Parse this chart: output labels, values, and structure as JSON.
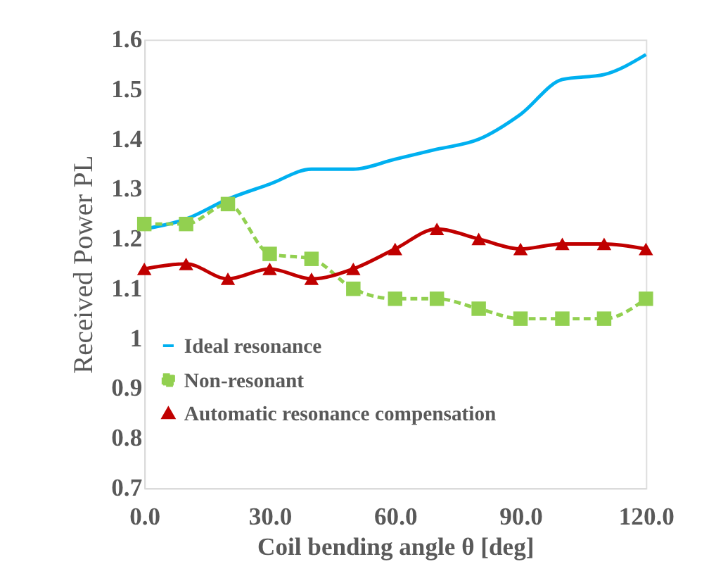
{
  "chart_data": {
    "type": "line",
    "xlabel": "Coil bending angle θ [deg]",
    "ylabel": "Received Power PL",
    "x": [
      0,
      10,
      20,
      30,
      40,
      50,
      60,
      70,
      80,
      90,
      100,
      110,
      120
    ],
    "series": [
      {
        "name": "Ideal resonance",
        "color": "#00b0f0",
        "marker": "none",
        "line_style": "solid",
        "values": [
          1.22,
          1.24,
          1.28,
          1.31,
          1.34,
          1.34,
          1.36,
          1.38,
          1.4,
          1.45,
          1.52,
          1.53,
          1.57
        ]
      },
      {
        "name": "Non-resonant",
        "color": "#92d050",
        "marker": "square",
        "line_style": "dashed",
        "values": [
          1.23,
          1.23,
          1.27,
          1.17,
          1.16,
          1.1,
          1.08,
          1.08,
          1.06,
          1.04,
          1.04,
          1.04,
          1.08
        ]
      },
      {
        "name": "Automatic resonance compensation",
        "color": "#c00000",
        "marker": "triangle",
        "line_style": "solid",
        "values": [
          1.14,
          1.15,
          1.12,
          1.14,
          1.12,
          1.14,
          1.18,
          1.22,
          1.2,
          1.18,
          1.19,
          1.19,
          1.18
        ]
      }
    ],
    "xlim": [
      0,
      120
    ],
    "xticks": [
      {
        "value": 0,
        "label": "0.0"
      },
      {
        "value": 30,
        "label": "30.0"
      },
      {
        "value": 60,
        "label": "60.0"
      },
      {
        "value": 90,
        "label": "90.0"
      },
      {
        "value": 120,
        "label": "120.0"
      }
    ],
    "ylim": [
      0.7,
      1.6
    ],
    "yticks": [
      0.7,
      0.8,
      0.9,
      1,
      1.1,
      1.2,
      1.3,
      1.4,
      1.5,
      1.6
    ],
    "grid": false,
    "legend": "bottom left"
  }
}
